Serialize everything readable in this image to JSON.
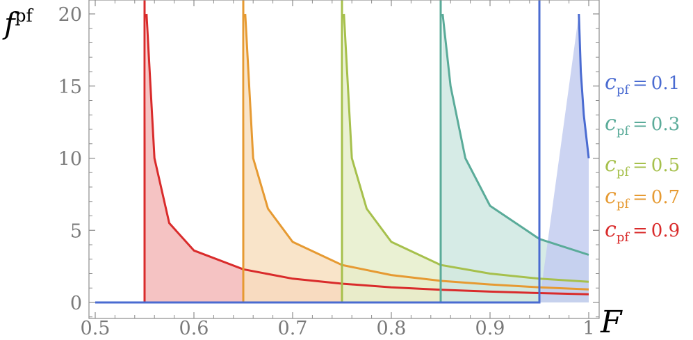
{
  "chart_data": {
    "type": "area",
    "xlabel": "F",
    "ylabel": "f",
    "ylabel_superscript": "pf",
    "xlim": [
      0.5,
      1.0
    ],
    "ylim": [
      -1,
      21
    ],
    "x_ticks": [
      0.5,
      0.6,
      0.7,
      0.8,
      0.9,
      1.0
    ],
    "x_tick_labels": [
      "0.5",
      "0.6",
      "0.7",
      "0.8",
      "0.9",
      "1"
    ],
    "y_ticks": [
      0,
      5,
      10,
      15,
      20
    ],
    "y_tick_labels": [
      "0",
      "5",
      "10",
      "15",
      "20"
    ],
    "grid": false,
    "legend_position": "right",
    "series": [
      {
        "name": "c_pf = 0.1",
        "symbol": "c",
        "subscript": "pf",
        "relation": "=",
        "value": "0.1",
        "onset_F": 0.95,
        "color": "#4a6bd1",
        "fill": "#c3cdf0",
        "points": [
          [
            0.95,
            0.0
          ],
          [
            0.99,
            20.0
          ],
          [
            0.992,
            16.0
          ],
          [
            0.995,
            13.0
          ],
          [
            1.0,
            10.0
          ]
        ]
      },
      {
        "name": "c_pf = 0.3",
        "symbol": "c",
        "subscript": "pf",
        "relation": "=",
        "value": "0.3",
        "onset_F": 0.85,
        "color": "#5aab99",
        "fill": "#cfe8e2",
        "points": [
          [
            0.85,
            0.0
          ],
          [
            0.852,
            20.0
          ],
          [
            0.86,
            15.0
          ],
          [
            0.875,
            10.0
          ],
          [
            0.9,
            6.7
          ],
          [
            0.95,
            4.4
          ],
          [
            1.0,
            3.3
          ]
        ]
      },
      {
        "name": "c_pf = 0.5",
        "symbol": "c",
        "subscript": "pf",
        "relation": "=",
        "value": "0.5",
        "onset_F": 0.75,
        "color": "#a6c04c",
        "fill": "#e6eecb",
        "points": [
          [
            0.75,
            0.0
          ],
          [
            0.752,
            20.0
          ],
          [
            0.76,
            10.0
          ],
          [
            0.775,
            6.5
          ],
          [
            0.8,
            4.2
          ],
          [
            0.85,
            2.6
          ],
          [
            0.9,
            2.0
          ],
          [
            0.95,
            1.65
          ],
          [
            1.0,
            1.43
          ]
        ]
      },
      {
        "name": "c_pf = 0.7",
        "symbol": "c",
        "subscript": "pf",
        "relation": "=",
        "value": "0.7",
        "onset_F": 0.65,
        "color": "#e69a32",
        "fill": "#f8dfc0",
        "points": [
          [
            0.65,
            0.0
          ],
          [
            0.652,
            20.0
          ],
          [
            0.66,
            10.0
          ],
          [
            0.675,
            6.5
          ],
          [
            0.7,
            4.2
          ],
          [
            0.75,
            2.6
          ],
          [
            0.8,
            1.9
          ],
          [
            0.85,
            1.5
          ],
          [
            0.9,
            1.25
          ],
          [
            0.95,
            1.05
          ],
          [
            1.0,
            0.9
          ]
        ]
      },
      {
        "name": "c_pf = 0.9",
        "symbol": "c",
        "subscript": "pf",
        "relation": "=",
        "value": "0.9",
        "onset_F": 0.55,
        "color": "#d92b2b",
        "fill": "#f3b9b9",
        "points": [
          [
            0.55,
            0.0
          ],
          [
            0.552,
            20.0
          ],
          [
            0.56,
            10.0
          ],
          [
            0.575,
            5.5
          ],
          [
            0.6,
            3.6
          ],
          [
            0.65,
            2.3
          ],
          [
            0.7,
            1.65
          ],
          [
            0.75,
            1.3
          ],
          [
            0.8,
            1.05
          ],
          [
            0.85,
            0.88
          ],
          [
            0.9,
            0.75
          ],
          [
            0.95,
            0.65
          ],
          [
            1.0,
            0.57
          ]
        ]
      }
    ]
  }
}
